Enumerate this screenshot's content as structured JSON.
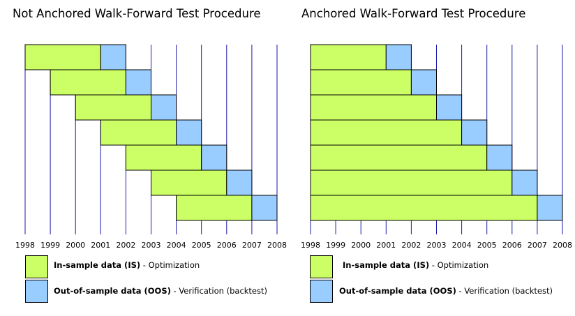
{
  "colors": {
    "in_sample": "#ccff66",
    "out_of_sample": "#99ccff",
    "grid": "#1a1aa6",
    "outline": "#000000"
  },
  "years": [
    "1998",
    "1999",
    "2000",
    "2001",
    "2002",
    "2003",
    "2004",
    "2005",
    "2006",
    "2007",
    "2008"
  ],
  "panels": [
    {
      "title": "Not Anchored Walk-Forward Test Procedure",
      "anchored": false,
      "windows": [
        {
          "is_start": "1998",
          "is_end": "2001",
          "oos_end": "2002"
        },
        {
          "is_start": "1999",
          "is_end": "2002",
          "oos_end": "2003"
        },
        {
          "is_start": "2000",
          "is_end": "2003",
          "oos_end": "2004"
        },
        {
          "is_start": "2001",
          "is_end": "2004",
          "oos_end": "2005"
        },
        {
          "is_start": "2002",
          "is_end": "2005",
          "oos_end": "2006"
        },
        {
          "is_start": "2003",
          "is_end": "2006",
          "oos_end": "2007"
        },
        {
          "is_start": "2004",
          "is_end": "2007",
          "oos_end": "2008"
        }
      ],
      "legend": {
        "is_label_bold": "In-sample data (IS)",
        "is_label_rest": " - Optimization",
        "oos_label_bold": "Out-of-sample data (OOS)",
        "oos_label_rest": " - Verification (backtest)"
      }
    },
    {
      "title": "Anchored Walk-Forward Test Procedure",
      "anchored": true,
      "windows": [
        {
          "is_start": "1998",
          "is_end": "2001",
          "oos_end": "2002"
        },
        {
          "is_start": "1998",
          "is_end": "2002",
          "oos_end": "2003"
        },
        {
          "is_start": "1998",
          "is_end": "2003",
          "oos_end": "2004"
        },
        {
          "is_start": "1998",
          "is_end": "2004",
          "oos_end": "2005"
        },
        {
          "is_start": "1998",
          "is_end": "2005",
          "oos_end": "2006"
        },
        {
          "is_start": "1998",
          "is_end": "2006",
          "oos_end": "2007"
        },
        {
          "is_start": "1998",
          "is_end": "2007",
          "oos_end": "2008"
        }
      ],
      "legend": {
        "is_label_bold": "In-sample data (IS)",
        "is_label_rest": " - Optimization",
        "oos_label_bold": "Out-of-sample data (OOS)",
        "oos_label_rest": " - Verification (backtest)"
      }
    }
  ]
}
